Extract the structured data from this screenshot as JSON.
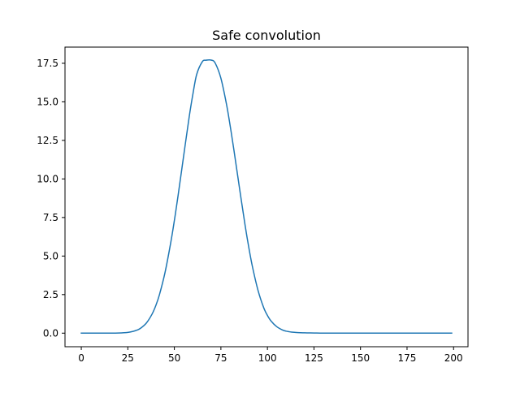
{
  "chart_data": {
    "type": "line",
    "title": "Safe convolution",
    "xlabel": "",
    "ylabel": "",
    "xlim": [
      -8.75,
      207.75
    ],
    "ylim": [
      -0.88,
      18.55
    ],
    "grid": false,
    "legend": "none",
    "x_ticks": [
      0,
      25,
      50,
      75,
      100,
      125,
      150,
      175,
      200
    ],
    "x_tick_labels": [
      "0",
      "25",
      "50",
      "75",
      "100",
      "125",
      "150",
      "175",
      "200"
    ],
    "y_ticks": [
      0,
      2.5,
      5,
      7.5,
      10,
      12.5,
      15,
      17.5
    ],
    "y_tick_labels": [
      "0.0",
      "2.5",
      "5.0",
      "7.5",
      "10.0",
      "12.5",
      "15.0",
      "17.5"
    ],
    "line_color": "#1f77b4",
    "series": [
      {
        "x": [
          0,
          5,
          10,
          15,
          20,
          25,
          28,
          30,
          32,
          35,
          38,
          40,
          42,
          45,
          48,
          50,
          52,
          55,
          58,
          60,
          62,
          65,
          67,
          70,
          72,
          75,
          78,
          80,
          82,
          85,
          88,
          90,
          92,
          95,
          98,
          100,
          102,
          105,
          108,
          110,
          113,
          115,
          120,
          125,
          130,
          140,
          150,
          160,
          170,
          180,
          190,
          199
        ],
        "y": [
          0,
          0,
          0,
          0,
          0.01,
          0.05,
          0.12,
          0.2,
          0.33,
          0.66,
          1.23,
          1.78,
          2.5,
          3.94,
          5.83,
          7.3,
          8.92,
          11.5,
          14.05,
          15.53,
          16.78,
          17.6,
          17.7,
          17.7,
          17.5,
          16.53,
          14.85,
          13.43,
          11.87,
          9.4,
          7.0,
          5.55,
          4.28,
          2.75,
          1.65,
          1.15,
          0.78,
          0.42,
          0.21,
          0.13,
          0.07,
          0.05,
          0.02,
          0.01,
          0,
          0,
          0,
          0,
          0,
          0,
          0,
          0
        ]
      }
    ]
  }
}
